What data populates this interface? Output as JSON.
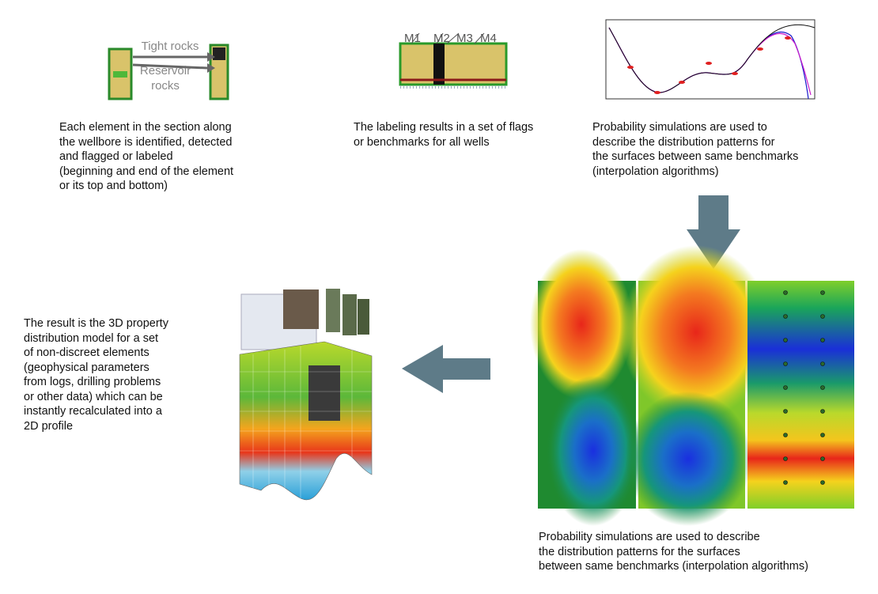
{
  "panel1": {
    "tight_rocks": "Tight rocks",
    "reservoir_rocks": "Reservoir rocks",
    "caption": [
      "Each element in the section along",
      "the wellbore is identified, detected",
      "and flagged or labeled",
      "(beginning and end of the element",
      "or its top and bottom)"
    ]
  },
  "panel2": {
    "markers": [
      "M1",
      "M2",
      "M3",
      "M4"
    ],
    "caption": [
      "The labeling results in a set of flags",
      "or benchmarks for all wells"
    ]
  },
  "panel3": {
    "caption": [
      "Probability simulations are used to",
      "describe the distribution patterns for",
      "the surfaces between same benchmarks",
      "(interpolation algorithms)"
    ]
  },
  "panel4": {
    "caption": [
      "The result is the 3D property",
      "distribution model for a set",
      "of non-discreet elements",
      "(geophysical parameters",
      "from logs, drilling problems",
      "or other data) which can be",
      "instantly recalculated into a",
      "2D profile"
    ]
  },
  "panel5": {
    "caption": [
      "Probability simulations are used to describe",
      "the distribution patterns for the surfaces",
      "between same benchmarks (interpolation algorithms)"
    ]
  }
}
